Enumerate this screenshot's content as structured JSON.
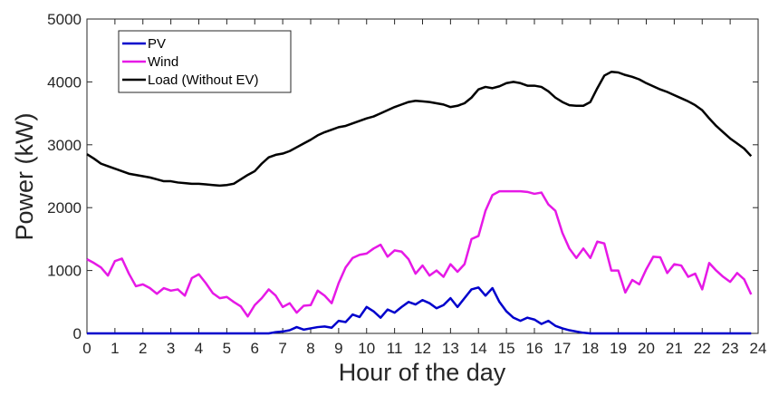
{
  "chart_data": {
    "type": "line",
    "xlabel": "Hour of the day",
    "ylabel": "Power (kW)",
    "x": [
      0,
      0.25,
      0.5,
      0.75,
      1,
      1.25,
      1.5,
      1.75,
      2,
      2.25,
      2.5,
      2.75,
      3,
      3.25,
      3.5,
      3.75,
      4,
      4.25,
      4.5,
      4.75,
      5,
      5.25,
      5.5,
      5.75,
      6,
      6.25,
      6.5,
      6.75,
      7,
      7.25,
      7.5,
      7.75,
      8,
      8.25,
      8.5,
      8.75,
      9,
      9.25,
      9.5,
      9.75,
      10,
      10.25,
      10.5,
      10.75,
      11,
      11.25,
      11.5,
      11.75,
      12,
      12.25,
      12.5,
      12.75,
      13,
      13.25,
      13.5,
      13.75,
      14,
      14.25,
      14.5,
      14.75,
      15,
      15.25,
      15.5,
      15.75,
      16,
      16.25,
      16.5,
      16.75,
      17,
      17.25,
      17.5,
      17.75,
      18,
      18.25,
      18.5,
      18.75,
      19,
      19.25,
      19.5,
      19.75,
      20,
      20.25,
      20.5,
      20.75,
      21,
      21.25,
      21.5,
      21.75,
      22,
      22.25,
      22.5,
      22.75,
      23,
      23.25,
      23.5,
      23.75
    ],
    "series": [
      {
        "name": "PV",
        "color": "#0000cc",
        "values": [
          0,
          0,
          0,
          0,
          0,
          0,
          0,
          0,
          0,
          0,
          0,
          0,
          0,
          0,
          0,
          0,
          0,
          0,
          0,
          0,
          0,
          0,
          0,
          0,
          0,
          0,
          0,
          20,
          30,
          50,
          100,
          60,
          80,
          100,
          110,
          90,
          200,
          180,
          300,
          260,
          420,
          350,
          250,
          380,
          330,
          420,
          500,
          460,
          530,
          480,
          400,
          450,
          560,
          420,
          560,
          700,
          730,
          600,
          720,
          500,
          350,
          250,
          200,
          250,
          220,
          150,
          200,
          120,
          80,
          50,
          30,
          10,
          0,
          0,
          0,
          0,
          0,
          0,
          0,
          0,
          0,
          0,
          0,
          0,
          0,
          0,
          0,
          0,
          0,
          0,
          0,
          0,
          0,
          0,
          0,
          0
        ]
      },
      {
        "name": "Wind",
        "color": "#e619e6",
        "values": [
          1180,
          1120,
          1050,
          920,
          1150,
          1190,
          950,
          750,
          780,
          720,
          630,
          720,
          680,
          700,
          600,
          880,
          940,
          800,
          640,
          560,
          580,
          500,
          430,
          270,
          450,
          560,
          700,
          600,
          420,
          480,
          330,
          440,
          450,
          680,
          600,
          480,
          800,
          1050,
          1200,
          1250,
          1270,
          1350,
          1410,
          1220,
          1320,
          1300,
          1180,
          950,
          1080,
          920,
          1000,
          900,
          1100,
          980,
          1100,
          1500,
          1550,
          1950,
          2200,
          2260,
          2260,
          2260,
          2260,
          2250,
          2220,
          2240,
          2050,
          1950,
          1600,
          1350,
          1200,
          1350,
          1200,
          1460,
          1430,
          1000,
          1000,
          650,
          850,
          780,
          1020,
          1220,
          1210,
          960,
          1100,
          1080,
          900,
          950,
          700,
          1120,
          1000,
          900,
          820,
          960,
          860,
          620
        ]
      },
      {
        "name": "Load (Without EV)",
        "color": "#000000",
        "values": [
          2850,
          2780,
          2700,
          2660,
          2620,
          2580,
          2540,
          2520,
          2500,
          2480,
          2450,
          2420,
          2420,
          2400,
          2390,
          2380,
          2380,
          2370,
          2360,
          2350,
          2360,
          2380,
          2450,
          2520,
          2580,
          2700,
          2800,
          2840,
          2860,
          2900,
          2960,
          3020,
          3080,
          3150,
          3200,
          3240,
          3280,
          3300,
          3340,
          3380,
          3420,
          3450,
          3500,
          3550,
          3600,
          3640,
          3680,
          3700,
          3690,
          3680,
          3660,
          3640,
          3600,
          3620,
          3660,
          3750,
          3880,
          3920,
          3900,
          3930,
          3980,
          4000,
          3980,
          3940,
          3940,
          3920,
          3850,
          3750,
          3680,
          3630,
          3620,
          3620,
          3680,
          3900,
          4100,
          4160,
          4150,
          4110,
          4080,
          4040,
          3980,
          3930,
          3880,
          3840,
          3790,
          3740,
          3690,
          3630,
          3550,
          3420,
          3300,
          3200,
          3100,
          3020,
          2940,
          2820
        ]
      }
    ],
    "xlim": [
      0,
      24
    ],
    "xticks": [
      0,
      1,
      2,
      3,
      4,
      5,
      6,
      7,
      8,
      9,
      10,
      11,
      12,
      13,
      14,
      15,
      16,
      17,
      18,
      19,
      20,
      21,
      22,
      23,
      24
    ],
    "ylim": [
      0,
      5000
    ],
    "yticks": [
      0,
      1000,
      2000,
      3000,
      4000,
      5000
    ],
    "grid": false,
    "legend": "upper left"
  }
}
